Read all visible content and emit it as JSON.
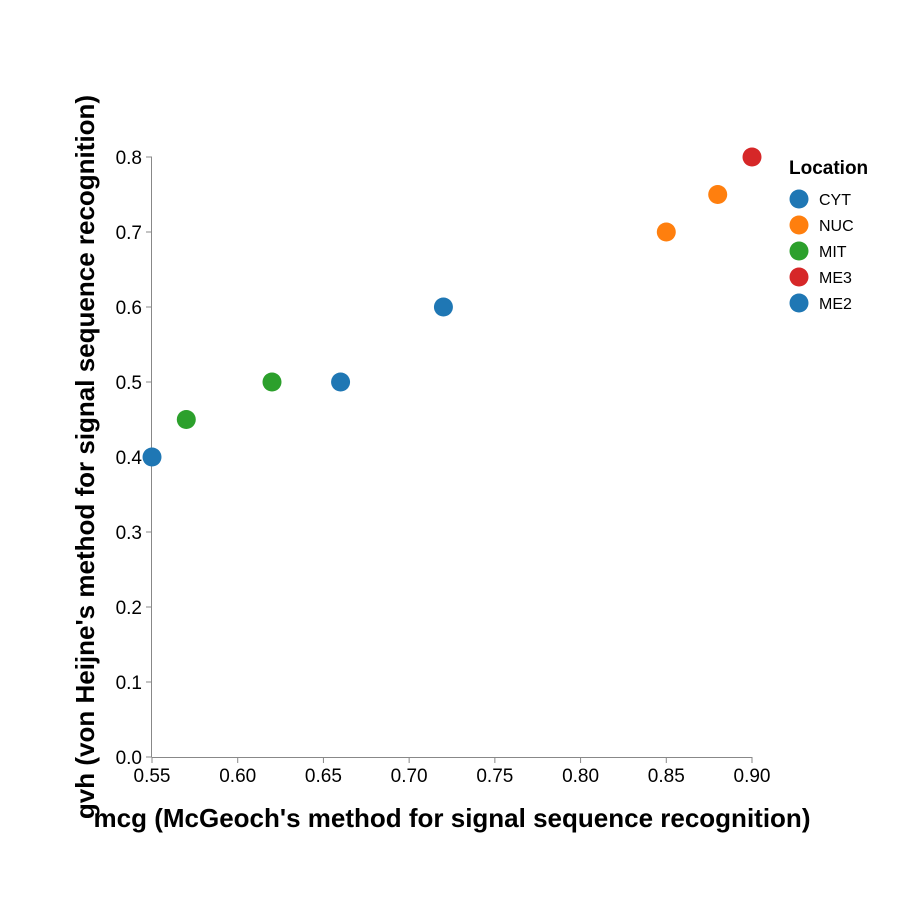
{
  "chart_data": {
    "type": "scatter",
    "xlabel": "mcg (McGeoch's method for signal sequence recognition)",
    "ylabel": "gvh (von Heijne's method for signal sequence recognition)",
    "xlim": [
      0.55,
      0.9
    ],
    "ylim": [
      0.0,
      0.8
    ],
    "x_ticks": [
      "0.55",
      "0.60",
      "0.65",
      "0.70",
      "0.75",
      "0.80",
      "0.85",
      "0.90"
    ],
    "y_ticks": [
      "0.0",
      "0.1",
      "0.2",
      "0.3",
      "0.4",
      "0.5",
      "0.6",
      "0.7",
      "0.8"
    ],
    "grid": false,
    "legend": {
      "title": "Location",
      "placement": "top-right",
      "entries": [
        {
          "name": "CYT",
          "color": "#1f77b4"
        },
        {
          "name": "NUC",
          "color": "#ff7f0e"
        },
        {
          "name": "MIT",
          "color": "#2ca02c"
        },
        {
          "name": "ME3",
          "color": "#d62728"
        },
        {
          "name": "ME2",
          "color": "#1f77b4"
        }
      ]
    },
    "points": [
      {
        "x": 0.55,
        "y": 0.4,
        "location": "CYT"
      },
      {
        "x": 0.57,
        "y": 0.45,
        "location": "MIT"
      },
      {
        "x": 0.62,
        "y": 0.5,
        "location": "MIT"
      },
      {
        "x": 0.66,
        "y": 0.5,
        "location": "CYT"
      },
      {
        "x": 0.72,
        "y": 0.6,
        "location": "ME2"
      },
      {
        "x": 0.85,
        "y": 0.7,
        "location": "NUC"
      },
      {
        "x": 0.88,
        "y": 0.75,
        "location": "NUC"
      },
      {
        "x": 0.9,
        "y": 0.8,
        "location": "ME3"
      }
    ]
  }
}
